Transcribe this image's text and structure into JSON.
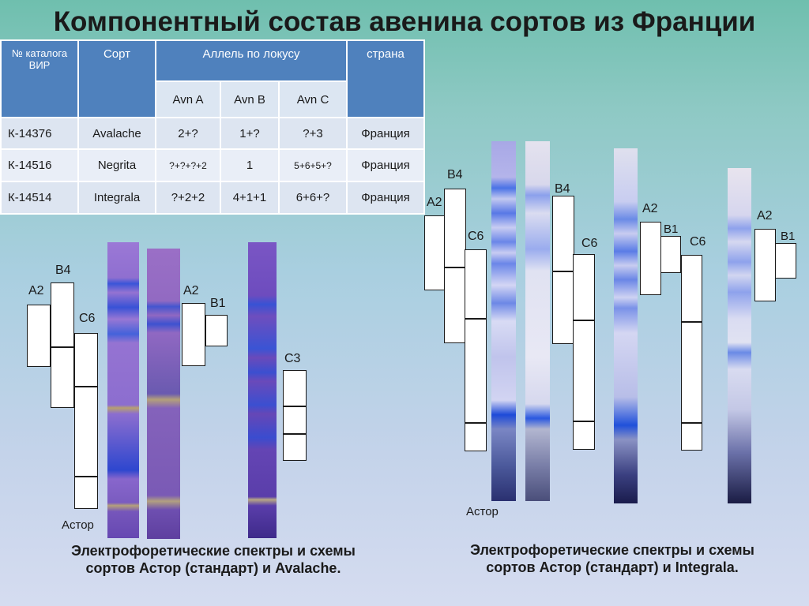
{
  "title": "Компонентный состав авенина сортов из Франции",
  "table": {
    "headers": {
      "catalog": "№ каталога ВИР",
      "variety": "Сорт",
      "allele": "Аллель по локусу",
      "country": "страна",
      "avnA": "Avn A",
      "avnB": "Avn B",
      "avnC": "Avn C"
    },
    "rows": [
      {
        "catalog": "К-14376",
        "variety": "Avalache",
        "a": "2+?",
        "b": "1+?",
        "c": "?+3",
        "country": "Франция"
      },
      {
        "catalog": "К-14516",
        "variety": "Negrita",
        "a": "?+?+?+2",
        "b": "1",
        "c": "5+6+5+?",
        "country": "Франция"
      },
      {
        "catalog": "К-14514",
        "variety": "Integrala",
        "a": "?+2+2",
        "b": "4+1+1",
        "c": "6+6+?",
        "country": "Франция"
      }
    ]
  },
  "left": {
    "labels": {
      "a2": "А2",
      "b4": "В4",
      "c6": "С6",
      "a2b": "А2",
      "b1": "В1",
      "c3": "С3",
      "astor": "Астор"
    },
    "caption_line1": "Электрофоретические спектры и схемы",
    "caption_line2": "сортов Астор (стандарт) и Avalache."
  },
  "right": {
    "labels": {
      "a2": "А2",
      "b4": "В4",
      "c6": "С6",
      "b4b": "В4",
      "c6b": "С6",
      "a2b": "А2",
      "b1": "В1",
      "c6c": "С6",
      "a2c": "А2",
      "b1b": "В1",
      "astor": "Астор"
    },
    "caption_line1": "Электрофоретические спектры и схемы",
    "caption_line2": "сортов Астор (стандарт) и Integrala."
  }
}
